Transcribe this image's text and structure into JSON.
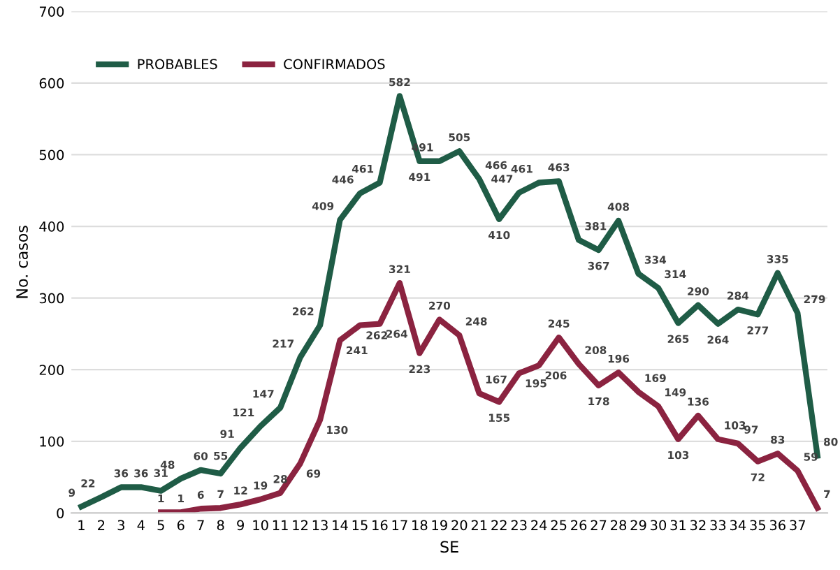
{
  "chart_data": {
    "type": "line",
    "xlabel": "SE",
    "ylabel": "No. casos",
    "categories": [
      "1",
      "2",
      "3",
      "4",
      "5",
      "6",
      "7",
      "8",
      "9",
      "10",
      "11",
      "12",
      "13",
      "14",
      "15",
      "16",
      "17",
      "18",
      "19",
      "20",
      "21",
      "22",
      "23",
      "24",
      "25",
      "26",
      "27",
      "28",
      "29",
      "30",
      "31",
      "32",
      "33",
      "34",
      "35",
      "36",
      "37",
      null
    ],
    "series": [
      {
        "name": "PROBABLES",
        "color": "#1f5c46",
        "values": [
          9,
          22,
          36,
          36,
          31,
          48,
          60,
          55,
          91,
          121,
          147,
          217,
          262,
          409,
          446,
          461,
          582,
          491,
          491,
          505,
          466,
          410,
          447,
          461,
          463,
          381,
          367,
          408,
          334,
          314,
          265,
          290,
          264,
          284,
          277,
          335,
          279,
          80
        ]
      },
      {
        "name": "CONFIRMADOS",
        "color": "#8b2340",
        "values": [
          null,
          null,
          null,
          null,
          1,
          1,
          6,
          7,
          12,
          19,
          28,
          69,
          130,
          241,
          262,
          264,
          321,
          223,
          270,
          248,
          167,
          155,
          195,
          206,
          245,
          208,
          178,
          196,
          169,
          149,
          103,
          136,
          103,
          97,
          72,
          83,
          59,
          7
        ]
      }
    ],
    "ylim": [
      0,
      700
    ],
    "yticks": [
      0,
      100,
      200,
      300,
      400,
      500,
      600,
      700
    ],
    "grid": "y",
    "legend": "top left",
    "data_labels": true,
    "marker": "none",
    "line_style": "solid"
  }
}
